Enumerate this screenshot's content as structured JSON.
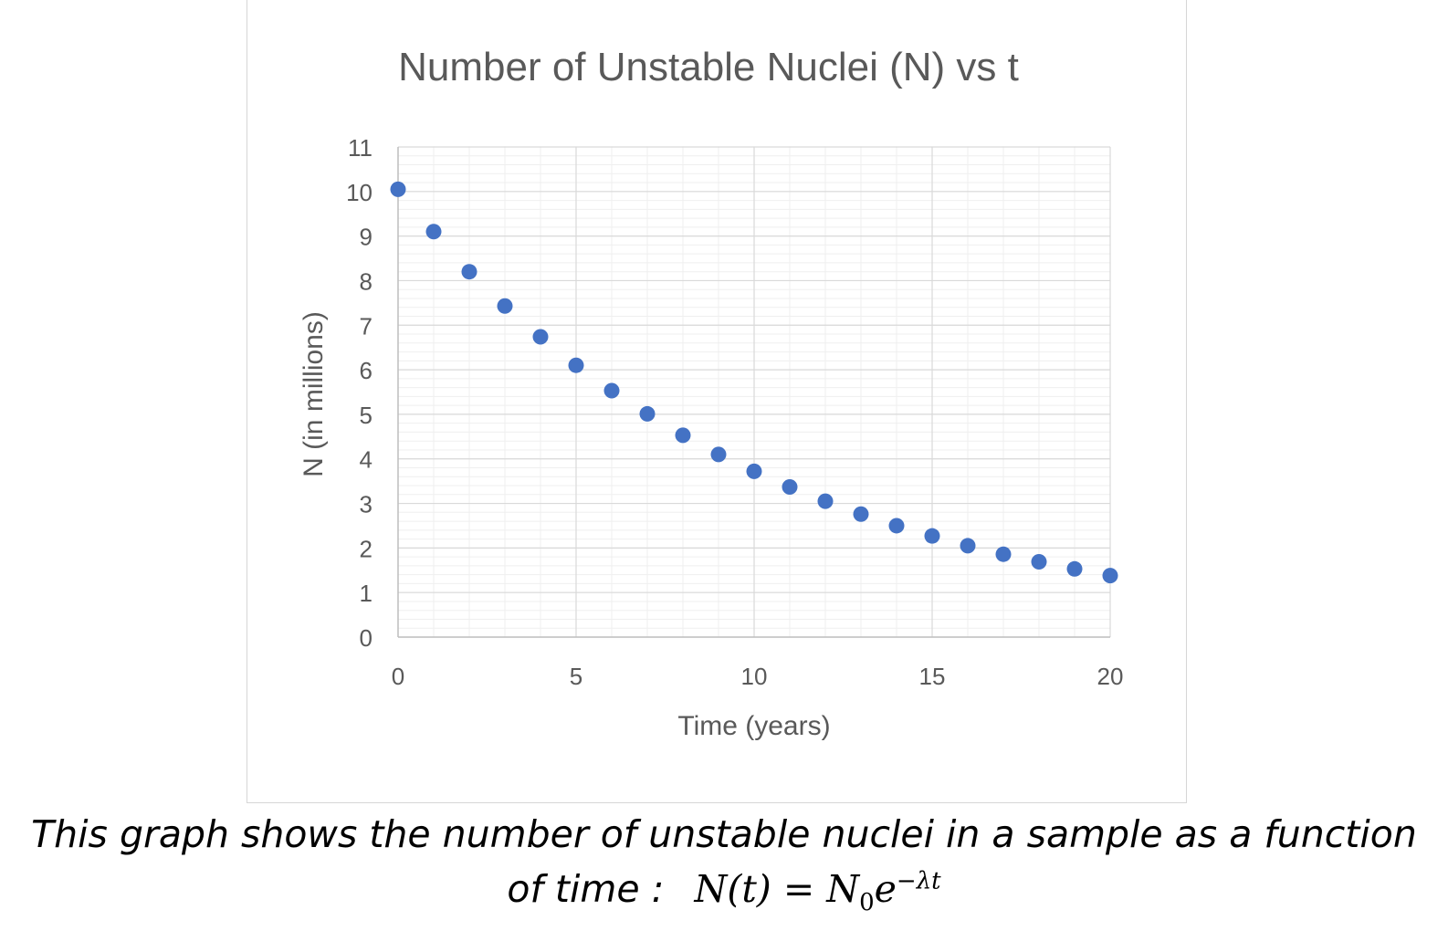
{
  "chart_data": {
    "type": "scatter",
    "title": "Number of Unstable Nuclei (N) vs t",
    "xlabel": "Time (years)",
    "ylabel": "N (in millions)",
    "xlim": [
      0,
      20
    ],
    "ylim": [
      0,
      11
    ],
    "xticks": [
      0,
      5,
      10,
      15,
      20
    ],
    "yticks": [
      0,
      1,
      2,
      3,
      4,
      5,
      6,
      7,
      8,
      9,
      10,
      11
    ],
    "grid": true,
    "legend": "none",
    "marker_color": "#4472C4",
    "x": [
      0,
      1,
      2,
      3,
      4,
      5,
      6,
      7,
      8,
      9,
      10,
      11,
      12,
      13,
      14,
      15,
      16,
      17,
      18,
      19,
      20
    ],
    "y": [
      10.05,
      9.1,
      8.2,
      7.43,
      6.74,
      6.1,
      5.53,
      5.01,
      4.53,
      4.1,
      3.72,
      3.37,
      3.05,
      2.76,
      2.5,
      2.27,
      2.05,
      1.86,
      1.69,
      1.53,
      1.38
    ]
  },
  "caption": {
    "line1": "This graph shows the number of unstable nuclei in a sample as a function",
    "line2_prefix": "of time :",
    "formula_lhs": "N(t) = N",
    "formula_sub": "0",
    "formula_base": "e",
    "formula_exp": "−λt"
  }
}
